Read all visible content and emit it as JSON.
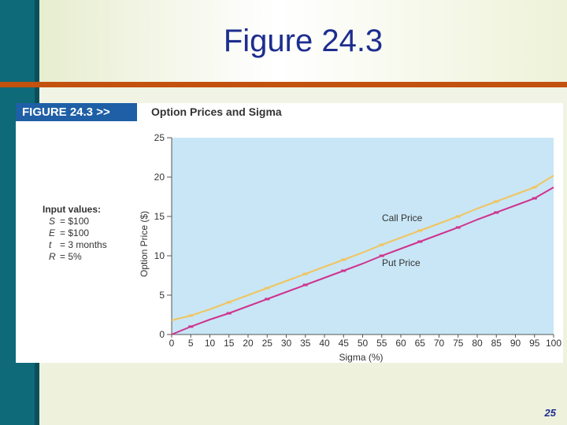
{
  "slide": {
    "title": "Figure 24.3",
    "page_number": "25"
  },
  "figure": {
    "label": "FIGURE 24.3 >>",
    "title": "Option Prices and Sigma"
  },
  "inputs": {
    "heading": "Input values:",
    "rows": [
      {
        "var": "S",
        "eq": "= $100"
      },
      {
        "var": "E",
        "eq": "= $100"
      },
      {
        "var": "t",
        "eq": "= 3 months"
      },
      {
        "var": "R",
        "eq": "= 5%"
      }
    ]
  },
  "colors": {
    "plot_bg": "#c8e6f6",
    "call": "#f1c45e",
    "put": "#d0328e"
  },
  "chart_data": {
    "type": "line",
    "xlabel": "Sigma (%)",
    "ylabel": "Option Price ($)",
    "xlim": [
      0,
      100
    ],
    "ylim": [
      0,
      25
    ],
    "xticks": [
      0,
      5,
      10,
      15,
      20,
      25,
      30,
      35,
      40,
      45,
      50,
      55,
      60,
      65,
      70,
      75,
      80,
      85,
      90,
      95,
      100
    ],
    "yticks": [
      0,
      5,
      10,
      15,
      20,
      25
    ],
    "grid": false,
    "x": [
      0,
      5,
      10,
      15,
      20,
      25,
      30,
      35,
      40,
      45,
      50,
      55,
      60,
      65,
      70,
      75,
      80,
      85,
      90,
      95,
      100
    ],
    "series": [
      {
        "name": "Call Price",
        "values": [
          1.8,
          2.4,
          3.2,
          4.1,
          5.0,
          5.9,
          6.8,
          7.7,
          8.6,
          9.5,
          10.4,
          11.4,
          12.3,
          13.2,
          14.1,
          15.0,
          16.0,
          16.9,
          17.8,
          18.7,
          20.2
        ]
      },
      {
        "name": "Put Price",
        "values": [
          0.0,
          1.0,
          1.9,
          2.7,
          3.6,
          4.5,
          5.4,
          6.3,
          7.2,
          8.1,
          9.0,
          10.0,
          10.9,
          11.8,
          12.7,
          13.6,
          14.6,
          15.5,
          16.4,
          17.3,
          18.7
        ]
      }
    ]
  }
}
